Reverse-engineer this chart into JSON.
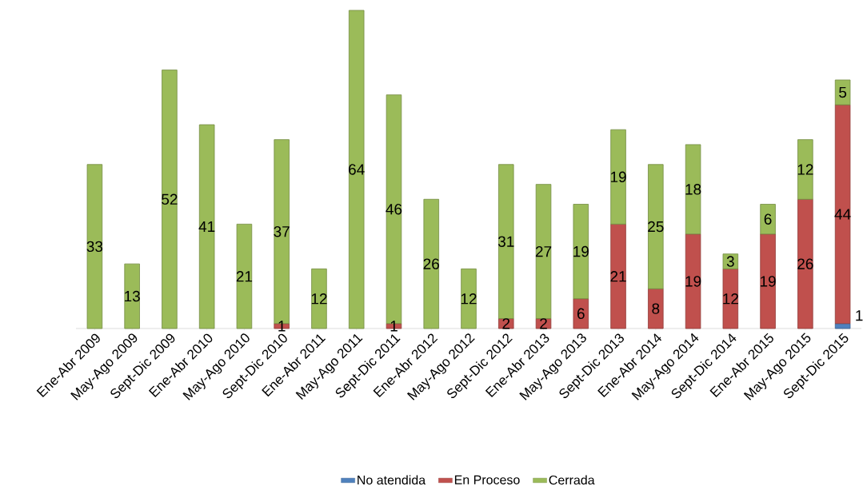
{
  "chart_data": {
    "type": "bar",
    "stacked": true,
    "data_labels": true,
    "legend": "bottom",
    "categories": [
      "Ene-Abr 2009",
      "May-Ago 2009",
      "Sept-Dic 2009",
      "Ene-Abr 2010",
      "May-Ago 2010",
      "Sept-Dic 2010",
      "Ene-Abr 2011",
      "May-Ago 2011",
      "Sept-Dic 2011",
      "Ene-Abr 2012",
      "May-Ago 2012",
      "Sept-Dic 2012",
      "Ene-Abr 2013",
      "May-Ago 2013",
      "Sept-Dic 2013",
      "Ene-Abr 2014",
      "May-Ago 2014",
      "Sept-Dic 2014",
      "Ene-Abr 2015",
      "May-Ago 2015",
      "Sept-Dic 2015"
    ],
    "series": [
      {
        "name": "No atendida",
        "color": "#4f81bd",
        "values": [
          null,
          null,
          null,
          null,
          null,
          null,
          null,
          null,
          null,
          null,
          null,
          null,
          null,
          null,
          null,
          null,
          null,
          null,
          null,
          null,
          1
        ]
      },
      {
        "name": "En Proceso",
        "color": "#c0504d",
        "values": [
          null,
          null,
          null,
          null,
          null,
          1,
          null,
          null,
          1,
          null,
          null,
          2,
          2,
          6,
          21,
          8,
          19,
          12,
          19,
          26,
          44
        ]
      },
      {
        "name": "Cerrada",
        "color": "#9bbb59",
        "values": [
          33,
          13,
          52,
          41,
          21,
          37,
          12,
          64,
          46,
          26,
          12,
          31,
          27,
          19,
          19,
          25,
          18,
          3,
          6,
          12,
          5
        ]
      }
    ]
  }
}
